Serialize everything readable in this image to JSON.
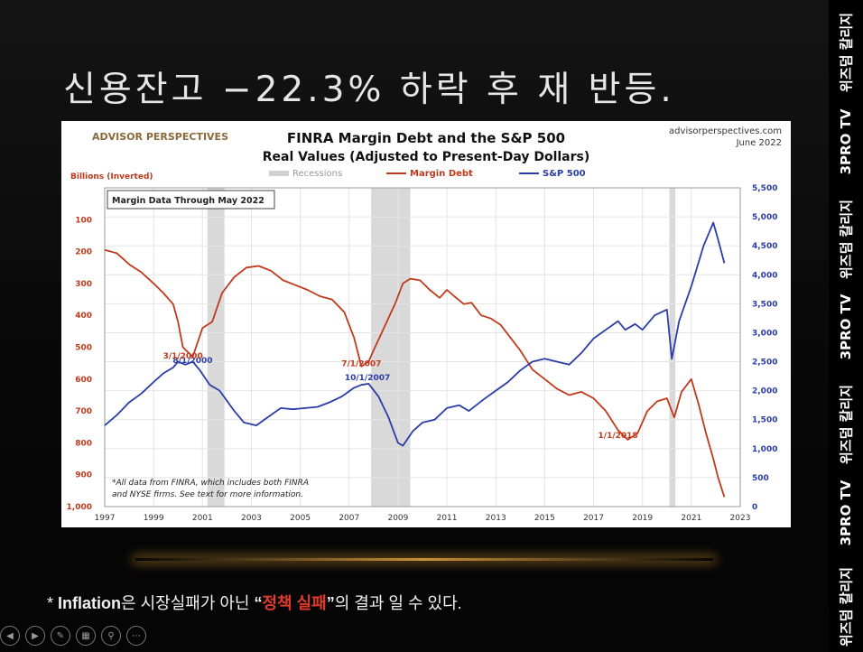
{
  "slide": {
    "title": "신용잔고 −22.3% 하락 후 재 반등.",
    "footnote": {
      "prefix": "* ",
      "bold": "Inflation",
      "part1": "은 시장실패가 아닌 ",
      "quote_open": "“",
      "red": "정책 실패",
      "quote_close": "”",
      "part2": "의 결과 일 수 있다."
    },
    "controls": [
      "prev-icon",
      "next-icon",
      "pen-icon",
      "slides-icon",
      "zoom-icon",
      "more-icon"
    ]
  },
  "sidebar": {
    "labels": [
      "위즈덤 칼리지",
      "3PRO TV",
      "위즈덤 칼리지",
      "3PRO TV",
      "위즈덤 칼리지",
      "3PRO TV",
      "위즈덤 칼리지"
    ]
  },
  "chart_data": {
    "type": "line",
    "title": "FINRA Margin Debt and the S&P 500",
    "subtitle": "Real Values (Adjusted to Present-Day Dollars)",
    "brand": "ADVISOR PERSPECTIVES",
    "source_url": "advisorperspectives.com",
    "source_date": "June 2022",
    "ylabel_left": "Billions (Inverted)",
    "info_box": "Margin Data Through May 2022",
    "note_line1": "*All data from FINRA, which includes both FINRA",
    "note_line2": "and NYSE firms. See text for more information.",
    "legend": [
      "Recessions",
      "Margin Debt",
      "S&P 500"
    ],
    "x_ticks": [
      "1997",
      "1999",
      "2001",
      "2003",
      "2005",
      "2007",
      "2009",
      "2011",
      "2013",
      "2015",
      "2017",
      "2019",
      "2021",
      "2023"
    ],
    "xlim": [
      1997,
      2023
    ],
    "left_ticks": [
      "100",
      "200",
      "300",
      "400",
      "500",
      "600",
      "700",
      "800",
      "900",
      "1,000"
    ],
    "left_ylim": [
      1000,
      0
    ],
    "right_ticks": [
      "0",
      "500",
      "1,000",
      "1,500",
      "2,000",
      "2,500",
      "3,000",
      "3,500",
      "4,000",
      "4,500",
      "5,000",
      "5,500"
    ],
    "right_ylim": [
      0,
      5500
    ],
    "recessions": [
      [
        2001.2,
        2001.9
      ],
      [
        2007.9,
        2009.5
      ],
      [
        2020.1,
        2020.35
      ]
    ],
    "annotations": [
      {
        "text": "8/1/2000",
        "series": "S&P 500",
        "x": 2000.6,
        "y": 2480,
        "color": "#2a3da8"
      },
      {
        "text": "3/1/2000",
        "series": "Margin Debt",
        "x": 2000.2,
        "y": 535,
        "color": "#c0391b"
      },
      {
        "text": "10/1/2007",
        "series": "S&P 500",
        "x": 2007.75,
        "y": 2180,
        "color": "#2a3da8"
      },
      {
        "text": "7/1/2007",
        "series": "Margin Debt",
        "x": 2007.5,
        "y": 560,
        "color": "#c0391b"
      },
      {
        "text": "1/1/2018",
        "series": "Margin Debt",
        "x": 2018.0,
        "y": 785,
        "color": "#c0391b"
      }
    ],
    "series": [
      {
        "name": "Margin Debt",
        "axis": "left",
        "color": "#c0391b",
        "x": [
          1997.0,
          1997.5,
          1998.0,
          1998.5,
          1999.0,
          1999.4,
          1999.8,
          2000.0,
          2000.2,
          2000.6,
          2001.0,
          2001.4,
          2001.8,
          2002.3,
          2002.8,
          2003.3,
          2003.8,
          2004.3,
          2004.8,
          2005.3,
          2005.8,
          2006.3,
          2006.8,
          2007.2,
          2007.5,
          2007.8,
          2008.0,
          2008.3,
          2008.6,
          2008.9,
          2009.2,
          2009.5,
          2009.9,
          2010.3,
          2010.7,
          2011.0,
          2011.3,
          2011.7,
          2012.0,
          2012.4,
          2012.8,
          2013.2,
          2013.6,
          2014.0,
          2014.5,
          2015.0,
          2015.5,
          2016.0,
          2016.5,
          2017.0,
          2017.5,
          2018.0,
          2018.4,
          2018.8,
          2019.2,
          2019.6,
          2020.0,
          2020.3,
          2020.6,
          2021.0,
          2021.3,
          2021.6,
          2021.9,
          2022.1,
          2022.35
        ],
        "y": [
          195,
          205,
          240,
          265,
          300,
          330,
          365,
          420,
          500,
          530,
          440,
          420,
          330,
          280,
          250,
          245,
          260,
          290,
          305,
          320,
          340,
          350,
          390,
          470,
          560,
          545,
          510,
          460,
          410,
          360,
          300,
          285,
          290,
          320,
          345,
          320,
          340,
          365,
          360,
          400,
          410,
          430,
          470,
          510,
          570,
          600,
          630,
          650,
          640,
          660,
          700,
          760,
          790,
          770,
          700,
          670,
          660,
          720,
          640,
          600,
          680,
          770,
          850,
          910,
          970
        ]
      },
      {
        "name": "S&P 500",
        "axis": "right",
        "color": "#2a3da8",
        "x": [
          1997.0,
          1997.5,
          1998.0,
          1998.5,
          1999.0,
          1999.4,
          1999.8,
          2000.0,
          2000.3,
          2000.6,
          2000.9,
          2001.3,
          2001.7,
          2002.3,
          2002.7,
          2003.2,
          2003.7,
          2004.2,
          2004.7,
          2005.2,
          2005.7,
          2006.2,
          2006.7,
          2007.2,
          2007.5,
          2007.8,
          2008.2,
          2008.6,
          2009.0,
          2009.2,
          2009.6,
          2010.0,
          2010.5,
          2011.0,
          2011.5,
          2011.9,
          2012.5,
          2013.0,
          2013.5,
          2014.0,
          2014.5,
          2015.0,
          2015.5,
          2016.0,
          2016.5,
          2017.0,
          2017.5,
          2018.0,
          2018.3,
          2018.7,
          2019.0,
          2019.5,
          2020.0,
          2020.2,
          2020.5,
          2021.0,
          2021.5,
          2021.9,
          2022.1,
          2022.35
        ],
        "y": [
          1400,
          1580,
          1800,
          1950,
          2150,
          2300,
          2400,
          2500,
          2450,
          2500,
          2350,
          2100,
          2000,
          1650,
          1450,
          1400,
          1550,
          1700,
          1680,
          1700,
          1720,
          1800,
          1900,
          2050,
          2100,
          2120,
          1900,
          1550,
          1100,
          1050,
          1300,
          1450,
          1500,
          1700,
          1750,
          1650,
          1850,
          2000,
          2150,
          2350,
          2500,
          2550,
          2500,
          2450,
          2650,
          2900,
          3050,
          3200,
          3050,
          3150,
          3050,
          3300,
          3400,
          2550,
          3200,
          3800,
          4500,
          4900,
          4600,
          4200
        ]
      }
    ]
  }
}
